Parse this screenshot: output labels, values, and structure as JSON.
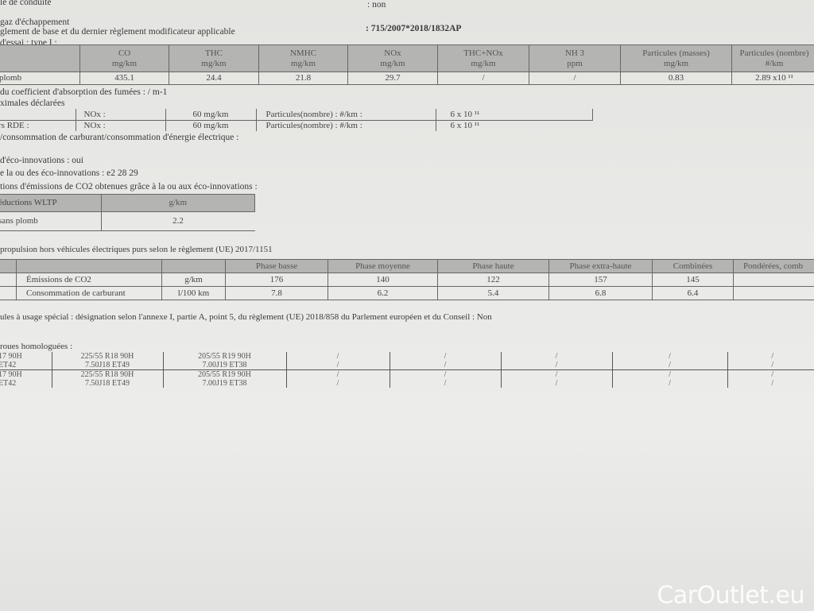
{
  "header": {
    "line1": "le de conduite",
    "line1_value": ": non",
    "line2": "gaz d'échappement",
    "line3": "glement de base et du dernier règlement modificateur applicable",
    "regulation": ": 715/2007*2018/1832AP",
    "test_type": "d'essai : type I :"
  },
  "emissions": {
    "headers": [
      [
        "CO",
        "mg/km"
      ],
      [
        "THC",
        "mg/km"
      ],
      [
        "NMHC",
        "mg/km"
      ],
      [
        "NOx",
        "mg/km"
      ],
      [
        "THC+NOx",
        "mg/km"
      ],
      [
        "NH 3",
        "ppm"
      ],
      [
        "Particules (masses)",
        "mg/km"
      ],
      [
        "Particules (nombre)",
        "#/km"
      ]
    ],
    "row_label": "plomb",
    "values": [
      "435.1",
      "24.4",
      "21.8",
      "29.7",
      "/",
      "/",
      "0.83",
      "2.89 x10 ¹¹"
    ]
  },
  "smoke": "du coefficient d'absorption des fumées : / m-1",
  "declared_label": "ximales déclarées",
  "rde": [
    {
      "label": "",
      "nox": "NOx :",
      "nox_val": "60 mg/km",
      "pn": "Particules(nombre) : #/km :",
      "pn_val": "6 x 10 ¹¹"
    },
    {
      "label": "rs RDE     :",
      "nox": "NOx :",
      "nox_val": "60 mg/km",
      "pn": "Particules(nombre) : #/km :",
      "pn_val": "6 x 10 ¹¹"
    }
  ],
  "consumption_line": "/consommation de carburant/consommation d'énergie électrique :",
  "eco": {
    "line1": "d'éco-innovations : oui",
    "line2": "e la ou des éco-innovations : e2 28 29",
    "line3": "tions d'émissions de CO2 obtenues grâce à la ou aux éco-innovations :",
    "table_header": [
      "éductions WLTP",
      "g/km"
    ],
    "table_row": [
      "sans plomb",
      "2.2"
    ]
  },
  "wltp": {
    "title": "propulsion hors véhicules électriques purs selon le règlement (UE) 2017/1151",
    "headers": [
      "",
      "",
      "Phase basse",
      "Phase moyenne",
      "Phase haute",
      "Phase extra-haute",
      "Combinées",
      "Pondérées, comb"
    ],
    "rows": [
      [
        "Émissions de CO2",
        "g/km",
        "176",
        "140",
        "122",
        "157",
        "145",
        ""
      ],
      [
        "Consommation de carburant",
        "l/100 km",
        "7.8",
        "6.2",
        "5.4",
        "6.8",
        "6.4",
        ""
      ]
    ]
  },
  "special": "ules à usage spécial : désignation selon l'annexe I, partie A, point 5, du règlement (UE) 2018/858 du Parlement européen et du Conseil : Non",
  "tyres": {
    "title": "roues homologuées :",
    "rows": [
      [
        "17 90H",
        "225/55 R18 90H",
        "205/55 R19 90H",
        "/",
        "/",
        "/",
        "/",
        "/"
      ],
      [
        "ET42",
        "7.50J18 ET49",
        "7.00J19 ET38",
        "/",
        "/",
        "/",
        "/",
        "/"
      ],
      [
        "17 90H",
        "225/55 R18 90H",
        "205/55 R19 90H",
        "/",
        "/",
        "/",
        "/",
        "/"
      ],
      [
        "ET42",
        "7.50J18 ET49",
        "7.00J19 ET38",
        "/",
        "/",
        "/",
        "/",
        "/"
      ]
    ]
  },
  "watermark": "CarOutlet.eu"
}
